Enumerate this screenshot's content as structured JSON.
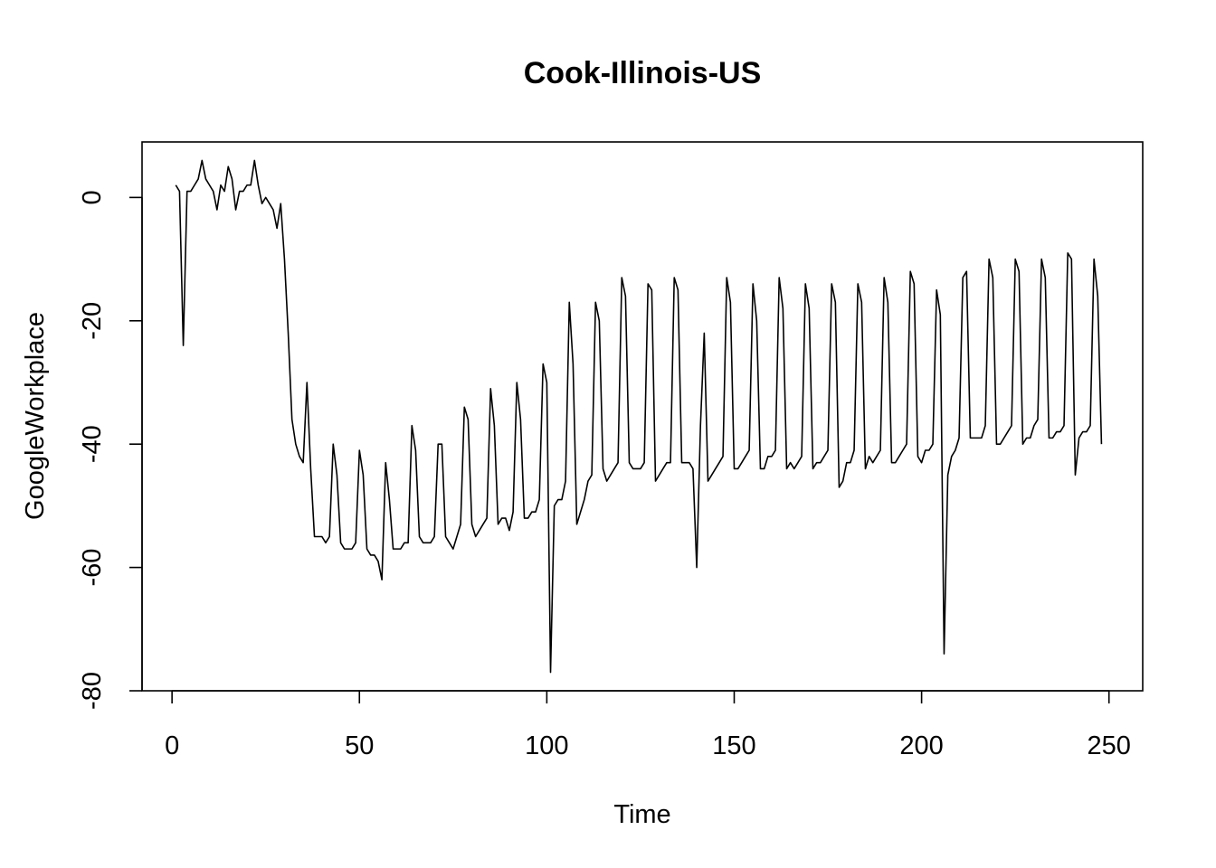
{
  "chart_data": {
    "type": "line",
    "title": "Cook-Illinois-US",
    "xlabel": "Time",
    "ylabel": "GoogleWorkplace",
    "xlim": [
      -8,
      259
    ],
    "ylim": [
      -80,
      9
    ],
    "xticks": [
      0,
      50,
      100,
      150,
      200,
      250
    ],
    "yticks": [
      -80,
      -60,
      -40,
      -20,
      0
    ],
    "grid": false,
    "series": [
      {
        "values": [
          2,
          1,
          -24,
          1,
          1,
          2,
          3,
          6,
          3,
          2,
          1,
          -2,
          2,
          1,
          5,
          3,
          -2,
          1,
          1,
          2,
          2,
          6,
          2,
          -1,
          0,
          -1,
          -2,
          -5,
          -1,
          -10,
          -22,
          -36,
          -40,
          -42,
          -43,
          -30,
          -44,
          -55,
          -55,
          -55,
          -56,
          -55,
          -40,
          -45,
          -56,
          -57,
          -57,
          -57,
          -56,
          -41,
          -45,
          -57,
          -58,
          -58,
          -59,
          -62,
          -43,
          -49,
          -57,
          -57,
          -57,
          -56,
          -56,
          -37,
          -41,
          -55,
          -56,
          -56,
          -56,
          -55,
          -40,
          -40,
          -55,
          -56,
          -57,
          -55,
          -53,
          -34,
          -36,
          -53,
          -55,
          -54,
          -53,
          -52,
          -31,
          -37,
          -53,
          -52,
          -52,
          -54,
          -51,
          -30,
          -36,
          -52,
          -52,
          -51,
          -51,
          -49,
          -27,
          -30,
          -77,
          -50,
          -49,
          -49,
          -46,
          -17,
          -27,
          -53,
          -51,
          -49,
          -46,
          -45,
          -17,
          -20,
          -44,
          -46,
          -45,
          -44,
          -43,
          -13,
          -16,
          -43,
          -44,
          -44,
          -44,
          -43,
          -14,
          -15,
          -46,
          -45,
          -44,
          -43,
          -43,
          -13,
          -15,
          -43,
          -43,
          -43,
          -44,
          -60,
          -37,
          -22,
          -46,
          -45,
          -44,
          -43,
          -42,
          -13,
          -17,
          -44,
          -44,
          -43,
          -42,
          -41,
          -14,
          -20,
          -44,
          -44,
          -42,
          -42,
          -41,
          -13,
          -18,
          -44,
          -43,
          -44,
          -43,
          -42,
          -14,
          -18,
          -44,
          -43,
          -43,
          -42,
          -41,
          -14,
          -17,
          -47,
          -46,
          -43,
          -43,
          -41,
          -14,
          -17,
          -44,
          -42,
          -43,
          -42,
          -41,
          -13,
          -17,
          -43,
          -43,
          -42,
          -41,
          -40,
          -12,
          -14,
          -42,
          -43,
          -41,
          -41,
          -40,
          -15,
          -19,
          -74,
          -45,
          -42,
          -41,
          -39,
          -13,
          -12,
          -39,
          -39,
          -39,
          -39,
          -37,
          -10,
          -13,
          -40,
          -40,
          -39,
          -38,
          -37,
          -10,
          -12,
          -40,
          -39,
          -39,
          -37,
          -36,
          -10,
          -13,
          -39,
          -39,
          -38,
          -38,
          -37,
          -9,
          -10,
          -45,
          -39,
          -38,
          -38,
          -37,
          -10,
          -16,
          -40
        ]
      }
    ]
  }
}
